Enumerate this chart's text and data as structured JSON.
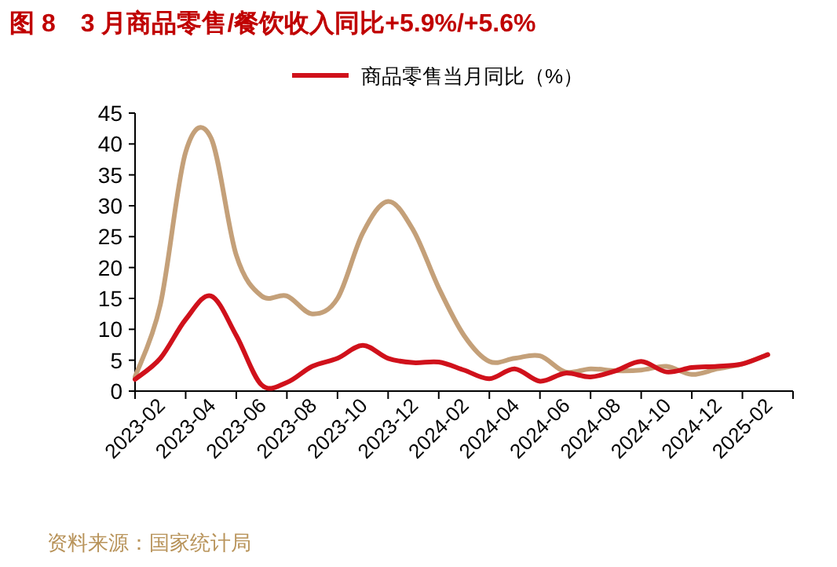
{
  "chart_data": {
    "type": "line",
    "title": "图 8　3 月商品零售/餐饮收入同比+5.9%/+5.6%",
    "annotations": [
      "资料来源：国家统计局"
    ],
    "categories": [
      "2023-02",
      null,
      "2023-04",
      null,
      "2023-06",
      null,
      "2023-08",
      null,
      "2023-10",
      null,
      "2023-12",
      null,
      "2024-02",
      null,
      "2024-04",
      null,
      "2024-06",
      null,
      "2024-08",
      null,
      "2024-10",
      null,
      "2024-12",
      null,
      "2025-02",
      null
    ],
    "series": [
      {
        "name": "商品零售当月同比（%）",
        "color": "#d0111b",
        "values": [
          1.9,
          5.3,
          11.6,
          15.4,
          9,
          1,
          1.4,
          4,
          5.3,
          7.4,
          5.3,
          4.6,
          4.7,
          3.4,
          2,
          3.6,
          1.6,
          2.9,
          2.3,
          3.3,
          4.8,
          3.1,
          3.8,
          4,
          4.4,
          5.9
        ]
      },
      {
        "color": "#c4a079",
        "values": [
          2.3,
          14,
          38.7,
          41,
          22,
          15.4,
          15.4,
          12.5,
          15,
          25.6,
          30.7,
          26,
          16.7,
          9,
          4.8,
          5.3,
          5.7,
          3.1,
          3.6,
          3.3,
          3.4,
          4,
          2.7,
          3.6,
          4.4,
          5.9
        ]
      }
    ],
    "ylim": [
      0,
      45
    ],
    "yticks": [
      0,
      5,
      10,
      15,
      20,
      25,
      30,
      35,
      40,
      45
    ],
    "legend": "top"
  }
}
